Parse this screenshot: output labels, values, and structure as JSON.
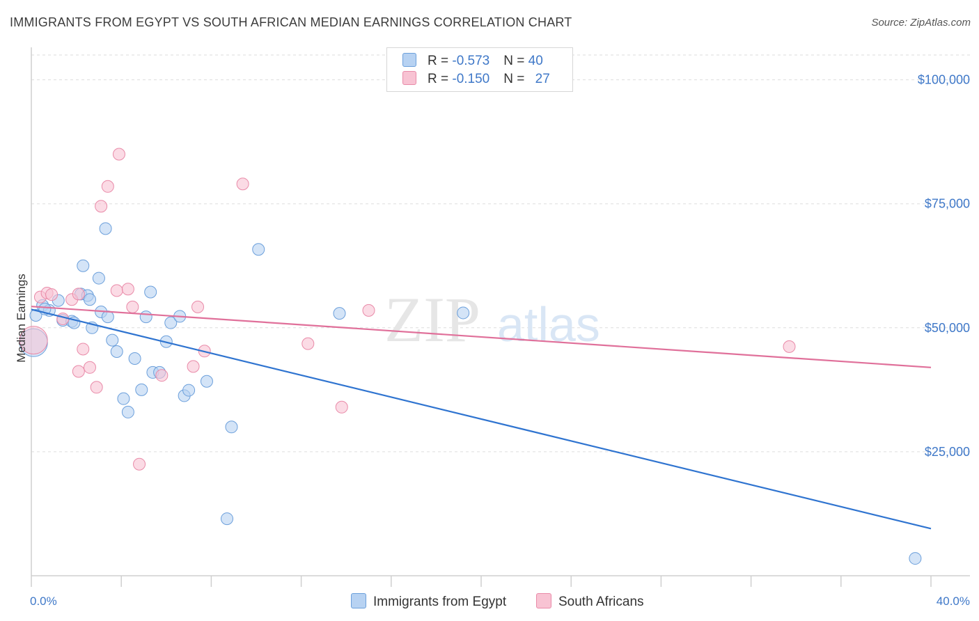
{
  "title": "IMMIGRANTS FROM EGYPT VS SOUTH AFRICAN MEDIAN EARNINGS CORRELATION CHART",
  "source": "Source: ZipAtlas.com",
  "watermark": {
    "zip": "ZIP",
    "atlas": "atlas"
  },
  "legend": {
    "rows": [
      {
        "r_label": "R = ",
        "r_value": "-0.573",
        "n_label": "N = ",
        "n_value": "40"
      },
      {
        "r_label": "R = ",
        "r_value": "-0.150",
        "n_label": "N = ",
        "n_value": "27"
      }
    ]
  },
  "colors": {
    "blue_fill": "#b7d2f2",
    "blue_stroke": "#6b9fdb",
    "blue_line": "#2f74d0",
    "pink_fill": "#f8c3d3",
    "pink_stroke": "#e98aa8",
    "pink_line": "#e0709a"
  },
  "chart_data": {
    "type": "scatter",
    "title": "IMMIGRANTS FROM EGYPT VS SOUTH AFRICAN MEDIAN EARNINGS CORRELATION CHART",
    "xlabel": "",
    "ylabel": "Median Earnings",
    "xlim": [
      0,
      40
    ],
    "ylim": [
      0,
      105000
    ],
    "x_tick_labels": [
      "0.0%",
      "40.0%"
    ],
    "y_ticks": [
      25000,
      50000,
      75000,
      100000
    ],
    "y_tick_labels": [
      "$25,000",
      "$50,000",
      "$75,000",
      "$100,000"
    ],
    "grid": "horizontal dashed",
    "legend_position": "top-center",
    "series": [
      {
        "name": "Immigrants from Egypt",
        "color": "#6b9fdb",
        "trend": {
          "x": [
            0,
            40
          ],
          "y": [
            53700,
            9500
          ]
        },
        "points": [
          {
            "x": 0.1,
            "y": 47000,
            "big": true
          },
          {
            "x": 0.2,
            "y": 52500
          },
          {
            "x": 0.5,
            "y": 54500
          },
          {
            "x": 0.8,
            "y": 53500
          },
          {
            "x": 1.2,
            "y": 55500
          },
          {
            "x": 1.4,
            "y": 51500
          },
          {
            "x": 1.8,
            "y": 51300
          },
          {
            "x": 1.9,
            "y": 51000
          },
          {
            "x": 2.2,
            "y": 56800
          },
          {
            "x": 2.5,
            "y": 56500
          },
          {
            "x": 2.3,
            "y": 62500
          },
          {
            "x": 2.6,
            "y": 55700
          },
          {
            "x": 2.7,
            "y": 50000
          },
          {
            "x": 3.0,
            "y": 60000
          },
          {
            "x": 3.1,
            "y": 53200
          },
          {
            "x": 3.3,
            "y": 70000
          },
          {
            "x": 3.4,
            "y": 52200
          },
          {
            "x": 3.6,
            "y": 47500
          },
          {
            "x": 3.8,
            "y": 45200
          },
          {
            "x": 4.1,
            "y": 35700
          },
          {
            "x": 4.3,
            "y": 33000
          },
          {
            "x": 4.6,
            "y": 43800
          },
          {
            "x": 4.9,
            "y": 37500
          },
          {
            "x": 5.1,
            "y": 52200
          },
          {
            "x": 5.3,
            "y": 57200
          },
          {
            "x": 5.4,
            "y": 41000
          },
          {
            "x": 5.7,
            "y": 41000
          },
          {
            "x": 6.0,
            "y": 47200
          },
          {
            "x": 6.2,
            "y": 51000
          },
          {
            "x": 6.6,
            "y": 52300
          },
          {
            "x": 6.8,
            "y": 36300
          },
          {
            "x": 7.0,
            "y": 37400
          },
          {
            "x": 7.8,
            "y": 39200
          },
          {
            "x": 8.7,
            "y": 11500
          },
          {
            "x": 8.9,
            "y": 30000
          },
          {
            "x": 10.1,
            "y": 65800
          },
          {
            "x": 13.7,
            "y": 52900
          },
          {
            "x": 19.2,
            "y": 53000
          },
          {
            "x": 39.3,
            "y": 3500
          },
          {
            "x": 0.6,
            "y": 53800
          }
        ]
      },
      {
        "name": "South Africans",
        "color": "#e98aa8",
        "trend": {
          "x": [
            0,
            40
          ],
          "y": [
            54300,
            42000
          ]
        },
        "points": [
          {
            "x": 0.1,
            "y": 47500,
            "big": true
          },
          {
            "x": 0.4,
            "y": 56200
          },
          {
            "x": 0.7,
            "y": 57000
          },
          {
            "x": 0.9,
            "y": 56700
          },
          {
            "x": 1.4,
            "y": 51800
          },
          {
            "x": 1.8,
            "y": 55700
          },
          {
            "x": 2.1,
            "y": 56800
          },
          {
            "x": 2.1,
            "y": 41200
          },
          {
            "x": 2.3,
            "y": 45700
          },
          {
            "x": 2.6,
            "y": 42000
          },
          {
            "x": 2.9,
            "y": 38000
          },
          {
            "x": 3.1,
            "y": 74500
          },
          {
            "x": 3.4,
            "y": 78500
          },
          {
            "x": 3.8,
            "y": 57500
          },
          {
            "x": 3.9,
            "y": 85000
          },
          {
            "x": 4.3,
            "y": 57800
          },
          {
            "x": 4.5,
            "y": 54200
          },
          {
            "x": 4.8,
            "y": 22500
          },
          {
            "x": 5.8,
            "y": 40400
          },
          {
            "x": 7.2,
            "y": 42200
          },
          {
            "x": 7.4,
            "y": 54200
          },
          {
            "x": 7.7,
            "y": 45300
          },
          {
            "x": 9.4,
            "y": 79000
          },
          {
            "x": 12.3,
            "y": 46800
          },
          {
            "x": 13.8,
            "y": 34000
          },
          {
            "x": 15.0,
            "y": 53500
          },
          {
            "x": 33.7,
            "y": 46200
          }
        ]
      }
    ]
  }
}
